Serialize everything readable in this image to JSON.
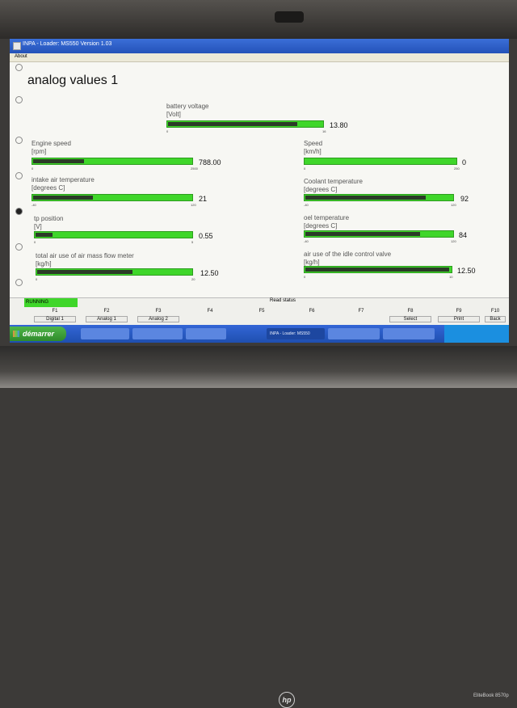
{
  "window": {
    "title": "INPA - Loader: MS550 Version 1.03",
    "menu": [
      "About"
    ]
  },
  "page": {
    "title": "analog values 1"
  },
  "gauges": [
    {
      "id": "battery",
      "label": "battery voltage",
      "unit": "[Volt]",
      "min": "0",
      "max": "16",
      "value": "13.80",
      "fill": 0.84
    },
    {
      "id": "engine",
      "label": "Engine speed",
      "unit": "[rpm]",
      "min": "0",
      "max": "2500",
      "value": "788.00",
      "fill": 0.32
    },
    {
      "id": "speed",
      "label": "Speed",
      "unit": "[km/h]",
      "min": "0",
      "max": "250",
      "value": "0",
      "fill": 0.0
    },
    {
      "id": "intake",
      "label": "intake air temperature",
      "unit": "[degrees C]",
      "min": "-40",
      "max": "120",
      "value": "21",
      "fill": 0.38
    },
    {
      "id": "coolant",
      "label": "Coolant temperature",
      "unit": "[degrees C]",
      "min": "-40",
      "max": "120",
      "value": "92",
      "fill": 0.82
    },
    {
      "id": "tp",
      "label": "tp position",
      "unit": "[V]",
      "min": "0",
      "max": "5",
      "value": "0.55",
      "fill": 0.11
    },
    {
      "id": "oil",
      "label": "oel temperature",
      "unit": "[degrees C]",
      "min": "-40",
      "max": "120",
      "value": "84",
      "fill": 0.78
    },
    {
      "id": "airmass",
      "label": "total air use of air mass flow meter",
      "unit": "[kg/h]",
      "min": "0",
      "max": "20",
      "value": "12.50",
      "fill": 0.62
    },
    {
      "id": "idle",
      "label": "air use of the idle control valve",
      "unit": "[kg/h]",
      "min": "0",
      "max": "10",
      "value": "12.50",
      "fill": 0.99
    }
  ],
  "status": {
    "running": "RUNNING",
    "read_status": "Read status"
  },
  "fkeys": [
    {
      "key": "F1",
      "label": "Digital 1"
    },
    {
      "key": "F2",
      "label": "Analog 1"
    },
    {
      "key": "F3",
      "label": "Analog 2"
    },
    {
      "key": "F4",
      "label": ""
    },
    {
      "key": "F5",
      "label": ""
    },
    {
      "key": "F6",
      "label": ""
    },
    {
      "key": "F7",
      "label": ""
    },
    {
      "key": "F8",
      "label": "Select"
    },
    {
      "key": "F9",
      "label": "Print"
    },
    {
      "key": "F10",
      "label": "Back"
    }
  ],
  "taskbar": {
    "start": "démarrer",
    "items": [
      "",
      "",
      "",
      "INPA - Loader: MS550",
      "",
      ""
    ]
  },
  "bezel": {
    "model": "EliteBook 8570p"
  },
  "colors": {
    "gauge_bar": "#3fd62a",
    "gauge_fill": "#2b3b27",
    "running": "#3fd62a",
    "titlebar": "#2452b8"
  }
}
